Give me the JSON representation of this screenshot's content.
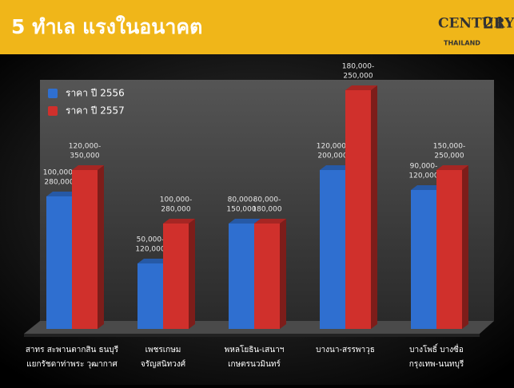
{
  "chart_data": {
    "type": "bar3d",
    "title": "5 ทำเล แรงในอนาคต",
    "logo_text": "CENTURY",
    "logo_number": "21",
    "logo_sub": "THAILAND",
    "categories": [
      [
        "สาทร สะพานตากสิน ธนบุรี",
        "แยกรัชดาท่าพระ วุฒากาศ"
      ],
      [
        "เพชรเกษม",
        "จรัญสนิทวงศ์"
      ],
      [
        "พหลโยธิน-เสนาฯ",
        "เกษตรนวมินทร์"
      ],
      [
        "บางนา-สรรพาวุธ",
        null
      ],
      [
        "บางโพธิ์ บางซื่อ",
        "กรุงเทพ-นนทบุรี"
      ]
    ],
    "ylim": [
      0,
      300
    ],
    "series": [
      {
        "name": "ราคา ปี 2556",
        "color": "#2f6fd0",
        "values": [
          166,
          82,
          132,
          199,
          174
        ],
        "value_labels": [
          [
            "100,000-",
            "280,000"
          ],
          [
            "50,000-",
            "120,000"
          ],
          [
            "80,000-",
            "150,000"
          ],
          [
            "120,000-",
            "200,000"
          ],
          [
            "90,000-",
            "120,000"
          ]
        ]
      },
      {
        "name": "ราคา ปี 2557",
        "color": "#d0302c",
        "values": [
          199,
          132,
          132,
          299,
          199
        ],
        "value_labels": [
          [
            "120,000-",
            "350,000"
          ],
          [
            "100,000-",
            "280,000"
          ],
          [
            "80,000-",
            "180,000"
          ],
          [
            "180,000-",
            "250,000"
          ],
          [
            "150,000-",
            "250,000"
          ]
        ]
      }
    ]
  }
}
